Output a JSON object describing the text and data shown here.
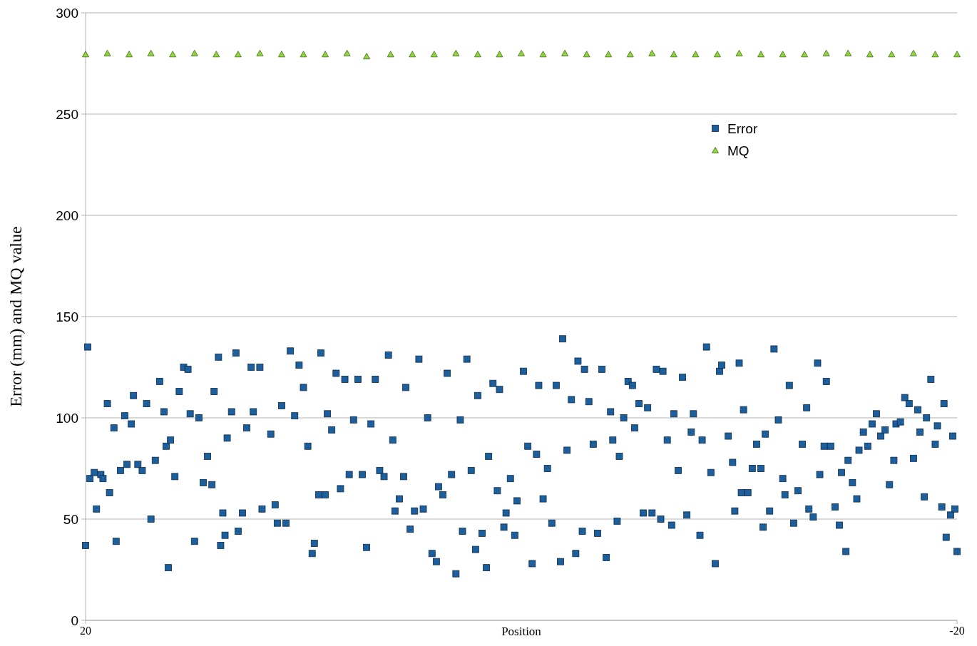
{
  "chart_data": {
    "type": "scatter",
    "xlabel": "Position",
    "ylabel": "Error (mm) and MQ value",
    "xlim": [
      20,
      -20
    ],
    "xticks": [
      20,
      -20
    ],
    "ylim": [
      0,
      300
    ],
    "yticks": [
      0,
      50,
      100,
      150,
      200,
      250,
      300
    ],
    "grid": "y",
    "legend": "top right",
    "series": [
      {
        "name": "Error",
        "color": "#1c5f9c",
        "marker": "square",
        "x": [
          20.0,
          19.9,
          19.8,
          19.6,
          19.5,
          19.3,
          19.2,
          19.0,
          18.9,
          18.7,
          18.6,
          18.4,
          18.2,
          18.1,
          17.9,
          17.8,
          17.6,
          17.4,
          17.2,
          17.0,
          16.8,
          16.6,
          16.4,
          16.3,
          16.2,
          16.1,
          15.9,
          15.7,
          15.5,
          15.3,
          15.2,
          15.0,
          14.8,
          14.6,
          14.4,
          14.2,
          14.1,
          13.9,
          13.8,
          13.7,
          13.6,
          13.5,
          13.3,
          13.1,
          13.0,
          12.8,
          12.6,
          12.4,
          12.3,
          12.0,
          11.9,
          11.5,
          11.3,
          11.2,
          11.0,
          10.8,
          10.6,
          10.4,
          10.2,
          10.0,
          9.8,
          9.6,
          9.5,
          9.3,
          9.2,
          9.0,
          8.9,
          8.7,
          8.5,
          8.3,
          8.1,
          7.9,
          7.7,
          7.5,
          7.3,
          7.1,
          6.9,
          6.7,
          6.5,
          6.3,
          6.1,
          5.9,
          5.8,
          5.6,
          5.4,
          5.3,
          5.1,
          4.9,
          4.7,
          4.5,
          4.3,
          4.1,
          3.9,
          3.8,
          3.6,
          3.4,
          3.2,
          3.0,
          2.8,
          2.7,
          2.5,
          2.3,
          2.1,
          2.0,
          1.8,
          1.6,
          1.5,
          1.3,
          1.1,
          1.0,
          0.8,
          0.7,
          0.5,
          0.3,
          0.2,
          -0.1,
          -0.3,
          -0.5,
          -0.7,
          -0.8,
          -1.0,
          -1.2,
          -1.4,
          -1.6,
          -1.8,
          -1.9,
          -2.1,
          -2.3,
          -2.5,
          -2.6,
          -2.8,
          -2.9,
          -3.1,
          -3.3,
          -3.5,
          -3.7,
          -3.9,
          -4.1,
          -4.2,
          -4.4,
          -4.5,
          -4.7,
          -4.9,
          -5.1,
          -5.2,
          -5.4,
          -5.6,
          -5.8,
          -6.0,
          -6.2,
          -6.4,
          -6.5,
          -6.7,
          -6.9,
          -7.0,
          -7.2,
          -7.4,
          -7.6,
          -7.8,
          -7.9,
          -8.2,
          -8.3,
          -8.5,
          -8.7,
          -8.9,
          -9.1,
          -9.2,
          -9.5,
          -9.7,
          -9.8,
          -10.0,
          -10.1,
          -10.2,
          -10.4,
          -10.6,
          -10.8,
          -11.0,
          -11.1,
          -11.2,
          -11.4,
          -11.6,
          -11.8,
          -12.0,
          -12.1,
          -12.3,
          -12.5,
          -12.7,
          -12.9,
          -13.1,
          -13.2,
          -13.4,
          -13.6,
          -13.7,
          -13.9,
          -14.0,
          -14.2,
          -14.4,
          -14.6,
          -14.7,
          -14.9,
          -15.0,
          -15.2,
          -15.4,
          -15.5,
          -15.7,
          -15.9,
          -16.1,
          -16.3,
          -16.5,
          -16.7,
          -16.9,
          -17.1,
          -17.2,
          -17.4,
          -17.6,
          -17.8,
          -18.0,
          -18.2,
          -18.3,
          -18.5,
          -18.6,
          -18.8,
          -19.0,
          -19.1,
          -19.3,
          -19.4,
          -19.5,
          -19.7,
          -19.8,
          -19.9,
          -20.0
        ],
        "values": [
          37,
          135,
          70,
          73,
          55,
          72,
          70,
          107,
          63,
          95,
          39,
          74,
          101,
          77,
          97,
          111,
          77,
          74,
          107,
          50,
          79,
          118,
          103,
          86,
          26,
          89,
          71,
          113,
          125,
          124,
          102,
          39,
          100,
          68,
          81,
          67,
          113,
          130,
          37,
          53,
          42,
          90,
          103,
          132,
          44,
          53,
          95,
          125,
          103,
          125,
          55,
          92,
          57,
          48,
          106,
          48,
          133,
          101,
          126,
          115,
          86,
          33,
          38,
          62,
          132,
          62,
          102,
          94,
          122,
          65,
          119,
          72,
          99,
          119,
          72,
          36,
          97,
          119,
          74,
          71,
          131,
          89,
          54,
          60,
          71,
          115,
          45,
          54,
          129,
          55,
          100,
          33,
          29,
          66,
          62,
          122,
          72,
          23,
          99,
          44,
          129,
          74,
          35,
          111,
          43,
          26,
          81,
          117,
          64,
          114,
          46,
          53,
          70,
          42,
          59,
          123,
          86,
          28,
          82,
          116,
          60,
          75,
          48,
          116,
          29,
          139,
          84,
          109,
          33,
          128,
          44,
          124,
          108,
          87,
          43,
          124,
          31,
          103,
          89,
          49,
          81,
          100,
          118,
          116,
          95,
          107,
          53,
          105,
          53,
          124,
          50,
          123,
          89,
          47,
          102,
          74,
          120,
          52,
          93,
          102,
          42,
          89,
          135,
          73,
          28,
          123,
          126,
          91,
          78,
          54,
          127,
          63,
          104,
          63,
          75,
          87,
          75,
          46,
          92,
          54,
          134,
          99,
          70,
          62,
          116,
          48,
          64,
          87,
          105,
          55,
          51,
          127,
          72,
          86,
          118,
          86,
          56,
          47,
          73,
          34,
          79,
          68,
          60,
          84,
          93,
          86,
          97,
          102,
          91,
          94,
          67,
          79,
          97,
          98,
          110,
          107,
          80,
          104,
          93,
          61,
          100,
          119,
          87,
          96,
          56,
          107,
          41,
          52,
          91,
          55,
          34
        ]
      },
      {
        "name": "MQ",
        "color": "#8fd63c",
        "marker": "triangle",
        "x": [
          20,
          19,
          18,
          17,
          16,
          15,
          14,
          13,
          12,
          11,
          10,
          9,
          8,
          7.1,
          6,
          5,
          4,
          3,
          2,
          1,
          0,
          -1,
          -2,
          -3,
          -4,
          -5,
          -6,
          -7,
          -8,
          -9,
          -10,
          -11,
          -12,
          -13,
          -14,
          -15,
          -16,
          -17,
          -18,
          -19,
          -20
        ],
        "values": [
          279.5,
          280,
          279.5,
          280,
          279.5,
          280,
          279.5,
          279.5,
          280,
          279.5,
          279.5,
          279.5,
          280,
          278.5,
          279.5,
          279.5,
          279.5,
          280,
          279.5,
          279.5,
          280,
          279.5,
          280,
          279.5,
          279.5,
          279.5,
          280,
          279.5,
          279.5,
          279.5,
          280,
          279.5,
          279.5,
          279.5,
          280,
          280,
          279.5,
          279.5,
          280,
          279.5,
          279.5
        ]
      }
    ]
  }
}
